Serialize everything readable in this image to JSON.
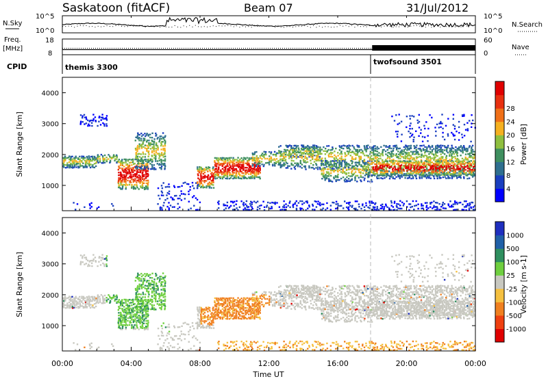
{
  "header": {
    "station": "Saskatoon (fitACF)",
    "beam": "Beam 07",
    "date": "31/Jul/2012"
  },
  "strips": {
    "nsky_label": "N.Sky",
    "nsky_ticks": [
      "10^5",
      "10^0"
    ],
    "nsearch_label": "N.Search",
    "nsearch_ticks": [
      "10^5",
      "10^0"
    ],
    "freq_label": "Freq.",
    "freq_unit": "[MHz]",
    "freq_ticks": [
      "18",
      "8"
    ],
    "nave_label": "Nave",
    "nave_ticks": [
      "60",
      "0"
    ],
    "cpid_label": "CPID",
    "cpid_segments": [
      {
        "name": "themis 3300",
        "start_h": 0,
        "end_h": 18
      },
      {
        "name": "twofsound 3501",
        "start_h": 18,
        "end_h": 24
      }
    ]
  },
  "chart_data": [
    {
      "type": "heatmap",
      "panel": "power",
      "ylabel": "Slant Range [km]",
      "ylim": [
        180,
        4500
      ],
      "yticks": [
        1000,
        2000,
        3000,
        4000
      ],
      "xlabel": "",
      "xlim_hours": [
        0,
        24
      ],
      "colorbar": {
        "label": "Power [dB]",
        "ticks": [
          "4",
          "8",
          "12",
          "16",
          "20",
          "24",
          "28"
        ],
        "colors": [
          "#0000ff",
          "#1a3fbf",
          "#2f6f8f",
          "#3f8f5f",
          "#8fbf3f",
          "#f5b020",
          "#f07018",
          "#e83010",
          "#e00000"
        ]
      }
    },
    {
      "type": "heatmap",
      "panel": "velocity",
      "ylabel": "Slant Range [km]",
      "ylim": [
        180,
        4500
      ],
      "yticks": [
        1000,
        2000,
        3000,
        4000
      ],
      "xlabel": "Time UT",
      "xticks": [
        "00:00",
        "04:00",
        "08:00",
        "12:00",
        "16:00",
        "20:00",
        "00:00"
      ],
      "xlim_hours": [
        0,
        24
      ],
      "colorbar": {
        "label": "Velocity [m s-1]",
        "ticks": [
          "1000",
          "500",
          "100",
          "25",
          "-25",
          "-100",
          "-500",
          "-1000"
        ],
        "colors": [
          "#1f2fbf",
          "#2060a8",
          "#2f8f5f",
          "#6fcf3f",
          "#c8c8c0",
          "#f5c040",
          "#f08020",
          "#ef4010",
          "#e00000"
        ]
      }
    }
  ]
}
